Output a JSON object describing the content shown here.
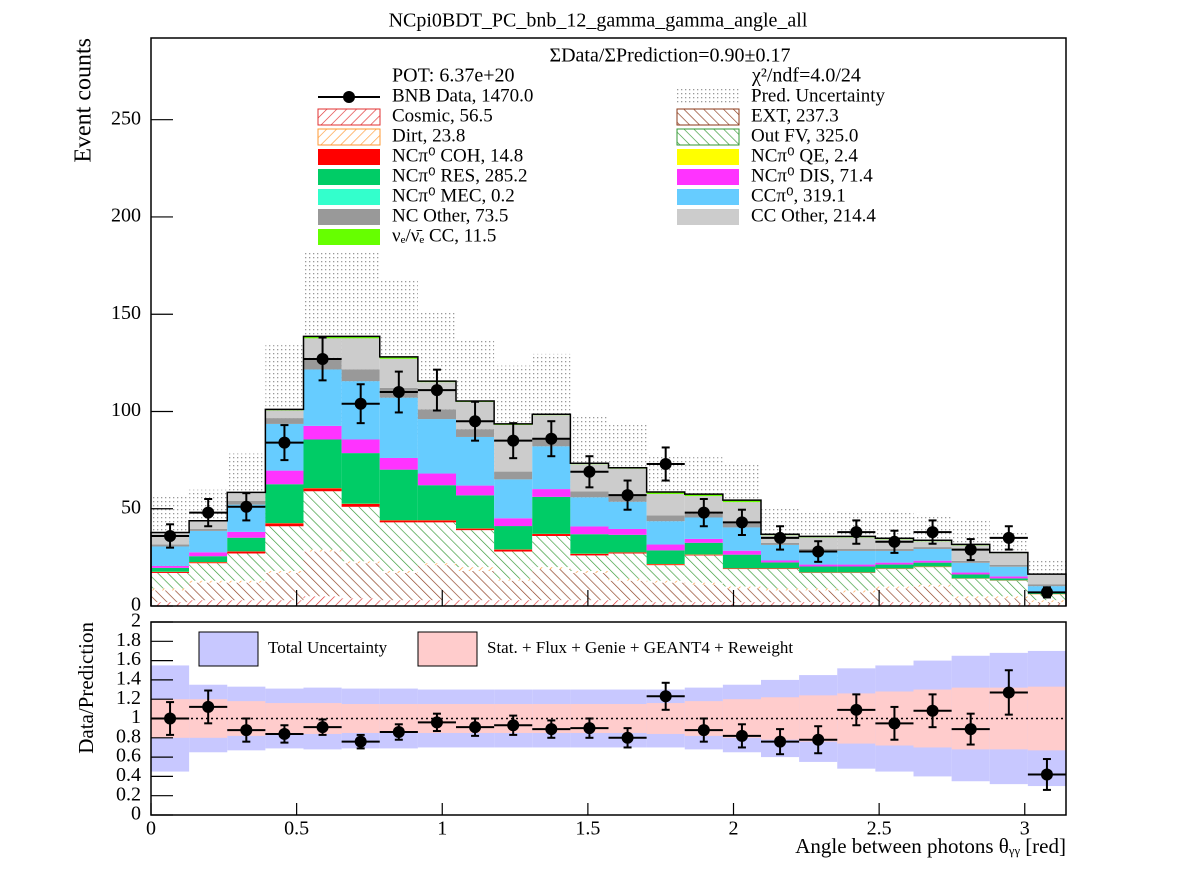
{
  "chart_data": {
    "type": "stacked_histogram",
    "title": "NCpi0BDT_PC_bnb_12_gamma_gamma_angle_all",
    "ratio_text": "ΣData/ΣPrediction=0.90±0.17",
    "pot": "POT: 6.37e+20",
    "chi2": "χ²/ndf=4.0/24",
    "ylabel": "Event counts",
    "xlabel": "Angle between photons θᵧᵧ [red]",
    "bins": [
      0,
      0.1309,
      0.2618,
      0.3927,
      0.5236,
      0.6545,
      0.7854,
      0.9163,
      1.0472,
      1.1781,
      1.309,
      1.4399,
      1.5708,
      1.7017,
      1.8326,
      1.9635,
      2.0944,
      2.2253,
      2.3562,
      2.4871,
      2.618,
      2.7489,
      2.8798,
      3.0107,
      3.1416
    ],
    "xlim": [
      0,
      3.1416
    ],
    "xticks": [
      0,
      0.5,
      1,
      1.5,
      2,
      2.5,
      3
    ],
    "ylim": [
      0,
      292
    ],
    "yticks": [
      0,
      50,
      100,
      150,
      200,
      250
    ],
    "series": [
      {
        "name": "Cosmic, 56.5",
        "color": "#e03030",
        "hatch": "forward",
        "values": [
          2,
          3,
          3,
          3,
          5,
          4,
          3,
          3,
          3,
          3,
          3,
          3,
          3,
          2,
          2,
          2,
          2,
          2,
          2,
          2,
          2,
          1,
          1,
          1
        ]
      },
      {
        "name": "EXT, 237.3",
        "color": "#8b3a1a",
        "hatch": "backward",
        "values": [
          6,
          9,
          9,
          14,
          23,
          18,
          14,
          18,
          15,
          10,
          16,
          14,
          10,
          10,
          9,
          7,
          6,
          6,
          5,
          7,
          8,
          3,
          3,
          1
        ]
      },
      {
        "name": "Dirt, 23.8",
        "color": "#ff9933",
        "hatch": "forward",
        "values": [
          1,
          1,
          1,
          1,
          1,
          1,
          1,
          1,
          2,
          1,
          1,
          1,
          1,
          1,
          1,
          1,
          1,
          1,
          1,
          1,
          1,
          1,
          1,
          1
        ]
      },
      {
        "name": "Out FV, 325.0",
        "color": "#339933",
        "hatch": "backward",
        "values": [
          8,
          9,
          14,
          23,
          30,
          28,
          25,
          21,
          19,
          14,
          16,
          8,
          13,
          8,
          14,
          9,
          10,
          8,
          9,
          9,
          9,
          9,
          8,
          3
        ]
      },
      {
        "name": "NCπ⁰ COH,  14.8",
        "color": "#ff0000",
        "values": [
          0.5,
          0.5,
          1,
          1.5,
          1.5,
          1.5,
          1,
          1,
          0.8,
          1,
          1,
          0.8,
          0.5,
          0.5,
          0.4,
          0.3,
          0.3,
          0.2,
          0.2,
          0.2,
          0.2,
          0.1,
          0.1,
          0.1
        ]
      },
      {
        "name": "NCπ⁰ QE,  2.4",
        "color": "#ffff00",
        "values": [
          0.1,
          0.1,
          0.1,
          0.1,
          0.1,
          0.1,
          0.1,
          0.1,
          0.1,
          0.1,
          0.1,
          0.1,
          0.1,
          0.1,
          0.1,
          0.1,
          0.1,
          0.1,
          0.1,
          0.1,
          0.1,
          0.1,
          0.1,
          0.1
        ]
      },
      {
        "name": "NCπ⁰ RES,  285.2",
        "color": "#00cc66",
        "values": [
          2,
          3,
          7,
          20,
          25,
          26,
          26,
          18,
          17,
          12,
          19,
          10,
          9,
          7,
          6,
          7,
          3,
          3,
          3,
          2,
          2,
          2,
          1,
          0.5
        ]
      },
      {
        "name": "NCπ⁰ DIS,  71.4",
        "color": "#ff33ff",
        "values": [
          1,
          2,
          3,
          7,
          7,
          7,
          6,
          6,
          5,
          4,
          4,
          4,
          3,
          3,
          2,
          2,
          1,
          1,
          1,
          1,
          1,
          1,
          1,
          0.5
        ]
      },
      {
        "name": "NCπ⁰ MEC,  0.2",
        "color": "#33ffcc",
        "values": [
          0,
          0,
          0,
          0,
          0,
          0,
          0,
          0,
          0,
          0,
          0,
          0,
          0,
          0,
          0,
          0,
          0,
          0,
          0,
          0,
          0,
          0,
          0,
          0
        ]
      },
      {
        "name": "CCπ⁰, 319.1",
        "color": "#66ccff",
        "values": [
          10,
          11,
          14,
          24,
          29,
          30,
          31,
          28,
          25,
          20,
          22,
          15,
          14,
          12,
          11,
          12,
          8,
          7,
          7,
          6,
          6,
          5,
          5,
          3
        ]
      },
      {
        "name": "NC Other, 73.5",
        "color": "#999999",
        "values": [
          1,
          1,
          2,
          3,
          6,
          6,
          5,
          5,
          4,
          4,
          4,
          3,
          3,
          3,
          2,
          2,
          1,
          1,
          1,
          1,
          1,
          1,
          1,
          1
        ]
      },
      {
        "name": "CC Other, 214.4",
        "color": "#cccccc",
        "values": [
          6,
          4,
          4,
          4,
          10,
          16,
          15,
          14,
          14,
          24,
          12,
          14,
          14,
          11,
          9,
          11,
          4,
          6,
          6,
          5,
          3,
          8,
          6,
          5
        ]
      },
      {
        "name": "νₑ/ν̄ₑ CC, 11.5",
        "color": "#66ff00",
        "values": [
          0.2,
          0.2,
          0.3,
          0.5,
          1,
          1,
          1,
          0.5,
          0.5,
          0.5,
          0.5,
          0.5,
          0.5,
          1,
          1,
          1,
          0.5,
          0.5,
          0.5,
          0.5,
          0.5,
          0.5,
          0.3,
          0.2
        ]
      }
    ],
    "data": {
      "name": "BNB Data, 1470.0",
      "color": "#000000",
      "values": [
        36,
        48,
        51,
        84,
        127,
        104,
        110,
        111,
        95,
        85,
        86,
        69,
        57,
        73,
        48,
        43,
        35,
        28,
        38,
        33,
        38,
        29,
        35,
        7
      ],
      "errors": [
        6,
        7,
        7,
        9,
        11,
        10,
        10.5,
        10.5,
        10,
        9,
        9,
        8,
        7.5,
        8.5,
        7,
        6.5,
        6,
        5.3,
        6,
        5.7,
        6,
        5.4,
        6,
        2.6
      ]
    },
    "uncertainty": {
      "name": "Pred. Uncertainty",
      "color": "#999999",
      "values": [
        19,
        16,
        20,
        33,
        44,
        44,
        40,
        36,
        32,
        30,
        31,
        24,
        23,
        19,
        19,
        19,
        14,
        13,
        13,
        13,
        13,
        12,
        11,
        8
      ]
    },
    "ratio": {
      "ylabel": "Data/Prediction",
      "ylim": [
        0,
        2
      ],
      "yticks": [
        0,
        0.2,
        0.4,
        0.6,
        0.8,
        1,
        1.2,
        1.4,
        1.6,
        1.8,
        2
      ],
      "reference_line": 1,
      "values": [
        1.0,
        1.12,
        0.88,
        0.84,
        0.91,
        0.76,
        0.86,
        0.96,
        0.91,
        0.93,
        0.89,
        0.9,
        0.8,
        1.23,
        0.88,
        0.82,
        0.76,
        0.78,
        1.09,
        0.95,
        1.08,
        0.89,
        1.27,
        0.42
      ],
      "errors": [
        0.17,
        0.17,
        0.12,
        0.09,
        0.08,
        0.07,
        0.08,
        0.09,
        0.09,
        0.1,
        0.09,
        0.1,
        0.1,
        0.14,
        0.12,
        0.12,
        0.13,
        0.14,
        0.16,
        0.17,
        0.17,
        0.16,
        0.23,
        0.16
      ],
      "bands": [
        {
          "name": "Total Uncertainty",
          "color": "#c8c8ff",
          "values": [
            0.55,
            0.35,
            0.33,
            0.31,
            0.32,
            0.31,
            0.31,
            0.3,
            0.3,
            0.3,
            0.3,
            0.3,
            0.3,
            0.3,
            0.32,
            0.35,
            0.4,
            0.45,
            0.52,
            0.55,
            0.6,
            0.65,
            0.68,
            0.7
          ]
        },
        {
          "name": "Stat. + Flux + Genie + GEANT4 + Reweight",
          "color": "#ffcccc",
          "values": [
            0.2,
            0.2,
            0.18,
            0.16,
            0.16,
            0.15,
            0.15,
            0.15,
            0.15,
            0.15,
            0.15,
            0.15,
            0.15,
            0.16,
            0.18,
            0.2,
            0.22,
            0.24,
            0.26,
            0.28,
            0.3,
            0.32,
            0.32,
            0.33
          ]
        }
      ]
    }
  }
}
